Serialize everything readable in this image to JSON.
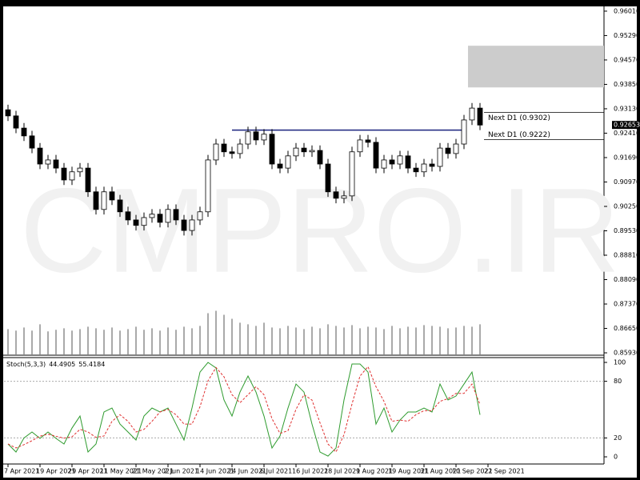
{
  "chart_data": [
    {
      "type": "candlestick",
      "watermark": "CMPRO.IR",
      "xlim": [
        -0.5,
        74.5
      ],
      "ylim": [
        0.8586,
        0.9615
      ],
      "yticks": [
        {
          "value": 0.9601,
          "label": "0.96010"
        },
        {
          "value": 0.9529,
          "label": "0.95290"
        },
        {
          "value": 0.9457,
          "label": "0.94570"
        },
        {
          "value": 0.9385,
          "label": "0.93850"
        },
        {
          "value": 0.9313,
          "label": "0.93130"
        },
        {
          "value": 0.9241,
          "label": "0.92410"
        },
        {
          "value": 0.9169,
          "label": "0.91690"
        },
        {
          "value": 0.9097,
          "label": "0.90970"
        },
        {
          "value": 0.9025,
          "label": "0.90250"
        },
        {
          "value": 0.8953,
          "label": "0.89530"
        },
        {
          "value": 0.8881,
          "label": "0.88810"
        },
        {
          "value": 0.8809,
          "label": "0.88090"
        },
        {
          "value": 0.8737,
          "label": "0.87370"
        },
        {
          "value": 0.8665,
          "label": "0.86650"
        },
        {
          "value": 0.8593,
          "label": "0.85930"
        }
      ],
      "open": [
        0.931,
        0.9292,
        0.9256,
        0.9233,
        0.9197,
        0.915,
        0.9162,
        0.9138,
        0.9103,
        0.9127,
        0.9138,
        0.9068,
        0.9016,
        0.9068,
        0.9044,
        0.9009,
        0.8985,
        0.8969,
        0.8992,
        0.9002,
        0.8978,
        0.9016,
        0.8985,
        0.8954,
        0.8985,
        0.9009,
        0.9162,
        0.9209,
        0.9186,
        0.9181,
        0.9209,
        0.9245,
        0.9221,
        0.9238,
        0.915,
        0.9138,
        0.9174,
        0.9197,
        0.9186,
        0.919,
        0.915,
        0.9068,
        0.9049,
        0.9056,
        0.9186,
        0.9221,
        0.9214,
        0.9138,
        0.9162,
        0.915,
        0.9174,
        0.9138,
        0.9127,
        0.915,
        0.9143,
        0.9197,
        0.9181,
        0.9209,
        0.928,
        0.9315
      ],
      "high": [
        0.9325,
        0.9307,
        0.9271,
        0.9248,
        0.9212,
        0.9177,
        0.9177,
        0.9153,
        0.9142,
        0.9153,
        0.9153,
        0.9083,
        0.9083,
        0.9083,
        0.9059,
        0.9024,
        0.9,
        0.9007,
        0.9017,
        0.9017,
        0.9031,
        0.9031,
        0.9,
        0.9,
        0.9024,
        0.9177,
        0.9224,
        0.9224,
        0.9201,
        0.9224,
        0.926,
        0.926,
        0.9253,
        0.9253,
        0.9165,
        0.9189,
        0.9212,
        0.9212,
        0.9205,
        0.9205,
        0.9165,
        0.9083,
        0.9071,
        0.9201,
        0.9236,
        0.9236,
        0.9229,
        0.9177,
        0.9177,
        0.9189,
        0.9189,
        0.9153,
        0.9165,
        0.9165,
        0.9212,
        0.9212,
        0.9224,
        0.9295,
        0.933,
        0.933
      ],
      "low": [
        0.9277,
        0.9241,
        0.9218,
        0.9182,
        0.9135,
        0.9135,
        0.9123,
        0.9088,
        0.9088,
        0.9112,
        0.9053,
        0.9001,
        0.9001,
        0.9029,
        0.8994,
        0.897,
        0.8954,
        0.8954,
        0.8977,
        0.8963,
        0.8963,
        0.897,
        0.8939,
        0.8939,
        0.897,
        0.8994,
        0.9147,
        0.9171,
        0.9166,
        0.9166,
        0.9194,
        0.9206,
        0.9206,
        0.9135,
        0.9123,
        0.9123,
        0.9159,
        0.9171,
        0.9171,
        0.9135,
        0.9053,
        0.9034,
        0.9034,
        0.9041,
        0.9171,
        0.9199,
        0.9123,
        0.9123,
        0.9135,
        0.9135,
        0.9123,
        0.9112,
        0.9112,
        0.9128,
        0.9128,
        0.9166,
        0.9166,
        0.9194,
        0.9265,
        0.925
      ],
      "close": [
        0.9292,
        0.9256,
        0.9233,
        0.9197,
        0.915,
        0.9162,
        0.9138,
        0.9103,
        0.9127,
        0.9138,
        0.9068,
        0.9016,
        0.9068,
        0.9044,
        0.9009,
        0.8985,
        0.8969,
        0.8992,
        0.9002,
        0.8978,
        0.9016,
        0.8985,
        0.8954,
        0.8985,
        0.9009,
        0.9162,
        0.9209,
        0.9186,
        0.9181,
        0.9209,
        0.9245,
        0.9221,
        0.9238,
        0.915,
        0.9138,
        0.9174,
        0.9197,
        0.9186,
        0.919,
        0.915,
        0.9068,
        0.9049,
        0.9056,
        0.9186,
        0.9221,
        0.9214,
        0.9138,
        0.9162,
        0.915,
        0.9174,
        0.9138,
        0.9127,
        0.915,
        0.9143,
        0.9197,
        0.9181,
        0.9209,
        0.928,
        0.9315,
        0.9265
      ],
      "up_color": "#ffffff",
      "down_color": "#000000",
      "current_price": 0.92653,
      "resistance": {
        "value": 0.925,
        "x": [
          28,
          57
        ],
        "color": "#1a237e"
      },
      "zone": {
        "y": [
          0.9376,
          0.9499
        ],
        "x_start": 57.5,
        "color": "#cccccc"
      },
      "levels": [
        {
          "value": 0.9302,
          "label": "Next D1 (0.9302)"
        },
        {
          "value": 0.9222,
          "label": "Next D1 (0.9222)"
        }
      ]
    },
    {
      "type": "bar",
      "ylim": [
        0,
        100
      ],
      "color": "#555555",
      "values": [
        32,
        30,
        34,
        30,
        38,
        29,
        31,
        33,
        30,
        32,
        35,
        33,
        31,
        34,
        30,
        32,
        35,
        31,
        33,
        30,
        34,
        31,
        35,
        33,
        36,
        52,
        55,
        50,
        45,
        40,
        38,
        36,
        40,
        34,
        33,
        36,
        34,
        32,
        35,
        33,
        38,
        36,
        34,
        37,
        33,
        35,
        34,
        32,
        36,
        33,
        35,
        34,
        37,
        36,
        35,
        33,
        34,
        36,
        35,
        38
      ]
    },
    {
      "type": "line",
      "label": "Stoch(5,3,3)",
      "xlim": [
        -0.5,
        74.5
      ],
      "ylim": [
        -7.6,
        105.1
      ],
      "yticks": [
        100,
        80,
        20,
        0
      ],
      "levels": [
        80,
        20
      ],
      "xticks": [
        {
          "value": 0,
          "label": "7 Apr 2021"
        },
        {
          "value": 4,
          "label": "19 Apr 2021"
        },
        {
          "value": 8,
          "label": "29 Apr 2021"
        },
        {
          "value": 12,
          "label": "11 May 2021"
        },
        {
          "value": 16,
          "label": "21 May 2021"
        },
        {
          "value": 20,
          "label": "2 Jun 2021"
        },
        {
          "value": 24,
          "label": "14 Jun 2021"
        },
        {
          "value": 28,
          "label": "24 Jun 2021"
        },
        {
          "value": 32,
          "label": "6 Jul 2021"
        },
        {
          "value": 36,
          "label": "16 Jul 2021"
        },
        {
          "value": 40,
          "label": "28 Jul 2021"
        },
        {
          "value": 44,
          "label": "9 Aug 2021"
        },
        {
          "value": 48,
          "label": "19 Aug 2021"
        },
        {
          "value": 52,
          "label": "31 Aug 2021"
        },
        {
          "value": 56,
          "label": "10 Sep 2021"
        },
        {
          "value": 60,
          "label": "22 Sep 2021"
        }
      ],
      "series": [
        {
          "color": "#2e9b2e",
          "dash": false,
          "values": [
            13.6,
            5.1,
            20.0,
            26.3,
            19.5,
            26.3,
            19.5,
            13.6,
            30.5,
            43.2,
            5.1,
            13.6,
            47.5,
            51.7,
            34.7,
            26.3,
            17.8,
            43.2,
            51.7,
            47.5,
            51.7,
            34.7,
            17.8,
            51.7,
            89.8,
            100,
            94.1,
            60.2,
            43.2,
            68.6,
            85.6,
            68.6,
            43.2,
            9.3,
            22.0,
            51.7,
            77.1,
            68.6,
            34.7,
            5.1,
            0.8,
            9.3,
            60.2,
            98.3,
            98.3,
            89.8,
            34.7,
            51.7,
            26.3,
            39.0,
            47.5,
            47.5,
            51.7,
            47.5,
            77.1,
            60.2,
            64.4,
            77.1,
            89.8,
            44.4905
          ]
        },
        {
          "color": "#e03030",
          "dash": true,
          "values": [
            13.6,
            9.4,
            12.9,
            17.1,
            21.9,
            24.0,
            21.8,
            19.8,
            21.2,
            29.1,
            26.3,
            20.6,
            22.1,
            37.6,
            44.6,
            37.6,
            26.3,
            29.1,
            37.6,
            47.5,
            50.3,
            44.6,
            34.7,
            34.7,
            53.1,
            80.5,
            94.6,
            84.8,
            65.8,
            57.3,
            65.8,
            74.3,
            65.8,
            40.4,
            24.8,
            27.7,
            50.3,
            65.8,
            60.1,
            36.1,
            13.5,
            5.1,
            23.4,
            55.9,
            85.6,
            95.5,
            74.3,
            58.7,
            37.6,
            39.0,
            37.6,
            44.7,
            48.9,
            48.9,
            58.8,
            61.6,
            67.2,
            67.2,
            77.1,
            55.4184
          ]
        }
      ]
    }
  ]
}
